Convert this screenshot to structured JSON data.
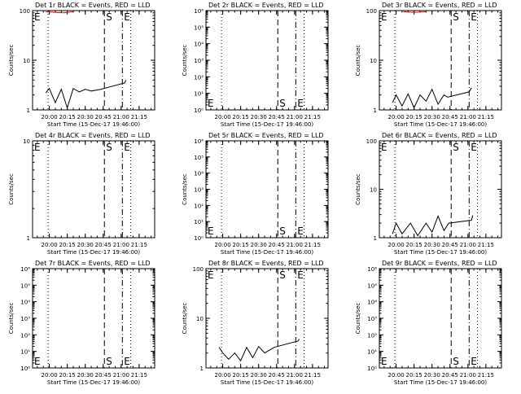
{
  "colors": {
    "background": "#ffffff",
    "events": "#000000",
    "lld": "#ff0000"
  },
  "time_axis": {
    "tick_labels": [
      "20:00",
      "20:15",
      "20:30",
      "20:45",
      "21:00",
      "21:15"
    ],
    "xlabel": "Start Time (15-Dec-17 19:46:00)",
    "xlim": [
      "19:46:00",
      "21:28:00"
    ]
  },
  "markers": {
    "E_left": {
      "label": "E",
      "time": "19:46:00",
      "style": "none"
    },
    "E_dotted": {
      "time": "19:59:00",
      "style": "dotted"
    },
    "S": {
      "label": "S",
      "time": "20:46:00",
      "style": "dashed"
    },
    "E_right": {
      "label": "E",
      "time": "21:01:00",
      "style": "dashdot"
    },
    "dotted_right": {
      "time": "21:08:00",
      "style": "dotted"
    }
  },
  "chart_data": [
    {
      "type": "line",
      "title": "Det 1r BLACK = Events, RED = LLD",
      "ylabel": "Counts/sec",
      "yscale": "log",
      "ylim": [
        1,
        100
      ],
      "ytick_labels": [
        "1",
        "10",
        "100"
      ],
      "series": [
        {
          "role": "events",
          "color": "#000000",
          "points": [
            [
              "19:57:00",
              2.2
            ],
            [
              "20:00:00",
              2.7
            ],
            [
              "20:05:00",
              1.4
            ],
            [
              "20:10:00",
              2.6
            ],
            [
              "20:15:00",
              1.1
            ],
            [
              "20:20:00",
              2.7
            ],
            [
              "20:25:00",
              2.3
            ],
            [
              "20:30:00",
              2.6
            ],
            [
              "20:35:00",
              2.4
            ],
            [
              "20:43:00",
              2.6
            ],
            [
              "21:03:00",
              3.5
            ],
            [
              "21:04:00",
              4.0
            ]
          ]
        },
        {
          "role": "lld",
          "color": "#ff0000",
          "points": [
            [
              "19:57:00",
              95
            ],
            [
              "20:05:00",
              92
            ],
            [
              "20:12:00",
              90
            ],
            [
              "20:20:00",
              95
            ]
          ]
        }
      ]
    },
    {
      "type": "line",
      "title": "Det 2r BLACK = Events, RED = LLD",
      "ylabel": "Counts/sec",
      "yscale": "log",
      "ylim": [
        1,
        1000000
      ],
      "ytick_labels": [
        "10⁰",
        "10¹",
        "10²",
        "10³",
        "10⁴",
        "10⁵",
        "10⁶"
      ],
      "series": []
    },
    {
      "type": "line",
      "title": "Det 3r BLACK = Events, RED = LLD",
      "ylabel": "Counts/sec",
      "yscale": "log",
      "ylim": [
        1,
        100
      ],
      "ytick_labels": [
        "1",
        "10",
        "100"
      ],
      "series": [
        {
          "role": "events",
          "color": "#000000",
          "points": [
            [
              "19:57:00",
              1.4
            ],
            [
              "20:00:00",
              2.0
            ],
            [
              "20:05:00",
              1.2
            ],
            [
              "20:10:00",
              2.1
            ],
            [
              "20:15:00",
              1.1
            ],
            [
              "20:20:00",
              2.0
            ],
            [
              "20:25:00",
              1.5
            ],
            [
              "20:30:00",
              2.6
            ],
            [
              "20:35:00",
              1.3
            ],
            [
              "20:40:00",
              2.0
            ],
            [
              "20:43:00",
              1.8
            ],
            [
              "21:01:00",
              2.3
            ],
            [
              "21:03:00",
              2.8
            ]
          ]
        },
        {
          "role": "lld",
          "color": "#ff0000",
          "points": [
            [
              "20:06:00",
              95
            ],
            [
              "20:15:00",
              92
            ],
            [
              "20:25:00",
              95
            ]
          ]
        }
      ]
    },
    {
      "type": "line",
      "title": "Det 4r BLACK = Events, RED = LLD",
      "ylabel": "Counts/sec",
      "yscale": "log",
      "ylim": [
        1,
        10
      ],
      "ytick_labels": [
        "1",
        "10"
      ],
      "series": []
    },
    {
      "type": "line",
      "title": "Det 5r BLACK = Events, RED = LLD",
      "ylabel": "Counts/sec",
      "yscale": "log",
      "ylim": [
        1,
        1000000
      ],
      "ytick_labels": [
        "10⁰",
        "10¹",
        "10²",
        "10³",
        "10⁴",
        "10⁵",
        "10⁶"
      ],
      "series": []
    },
    {
      "type": "line",
      "title": "Det 6r BLACK = Events, RED = LLD",
      "ylabel": "Counts/sec",
      "yscale": "log",
      "ylim": [
        1,
        100
      ],
      "ytick_labels": [
        "1",
        "10",
        "100"
      ],
      "series": [
        {
          "role": "events",
          "color": "#000000",
          "points": [
            [
              "19:57:00",
              1.2
            ],
            [
              "20:00:00",
              2.0
            ],
            [
              "20:05:00",
              1.2
            ],
            [
              "20:12:00",
              2.0
            ],
            [
              "20:18:00",
              1.1
            ],
            [
              "20:25:00",
              2.0
            ],
            [
              "20:30:00",
              1.3
            ],
            [
              "20:35:00",
              2.8
            ],
            [
              "20:40:00",
              1.4
            ],
            [
              "20:44:00",
              2.0
            ],
            [
              "21:03:00",
              2.3
            ],
            [
              "21:04:00",
              2.9
            ]
          ]
        }
      ]
    },
    {
      "type": "line",
      "title": "Det 7r BLACK = Events, RED = LLD",
      "ylabel": "Counts/sec",
      "yscale": "log",
      "ylim": [
        1,
        1000000
      ],
      "ytick_labels": [
        "10⁰",
        "10¹",
        "10²",
        "10³",
        "10⁴",
        "10⁵",
        "10⁶"
      ],
      "series": []
    },
    {
      "type": "line",
      "title": "Det 8r BLACK = Events, RED = LLD",
      "ylabel": "Counts/sec",
      "yscale": "log",
      "ylim": [
        1,
        100
      ],
      "ytick_labels": [
        "1",
        "10",
        "100"
      ],
      "series": [
        {
          "role": "events",
          "color": "#000000",
          "points": [
            [
              "19:57:00",
              2.6
            ],
            [
              "20:00:00",
              2.0
            ],
            [
              "20:05:00",
              1.5
            ],
            [
              "20:10:00",
              2.0
            ],
            [
              "20:15:00",
              1.4
            ],
            [
              "20:20:00",
              2.6
            ],
            [
              "20:25:00",
              1.6
            ],
            [
              "20:30:00",
              2.7
            ],
            [
              "20:35:00",
              2.0
            ],
            [
              "20:43:00",
              2.6
            ],
            [
              "21:03:00",
              3.5
            ],
            [
              "21:04:00",
              3.8
            ]
          ]
        }
      ]
    },
    {
      "type": "line",
      "title": "Det 9r BLACK = Events, RED = LLD",
      "ylabel": "Counts/sec",
      "yscale": "log",
      "ylim": [
        1,
        1000000
      ],
      "ytick_labels": [
        "10⁰",
        "10¹",
        "10²",
        "10³",
        "10⁴",
        "10⁵",
        "10⁶"
      ],
      "series": []
    }
  ]
}
